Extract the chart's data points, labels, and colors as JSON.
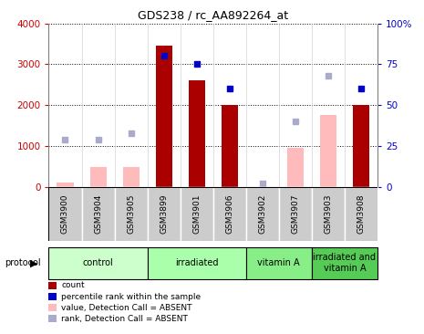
{
  "title": "GDS238 / rc_AA892264_at",
  "samples": [
    "GSM3900",
    "GSM3904",
    "GSM3905",
    "GSM3899",
    "GSM3901",
    "GSM3906",
    "GSM3902",
    "GSM3907",
    "GSM3903",
    "GSM3908"
  ],
  "count_values": [
    null,
    null,
    null,
    3450,
    2600,
    2000,
    null,
    null,
    null,
    2000
  ],
  "count_absent_values": [
    100,
    500,
    500,
    null,
    null,
    null,
    null,
    950,
    1750,
    null
  ],
  "rank_present": [
    null,
    null,
    null,
    80,
    75,
    60,
    null,
    null,
    null,
    60
  ],
  "rank_absent": [
    29,
    29,
    33,
    null,
    null,
    null,
    2,
    40,
    68,
    null
  ],
  "protocols": [
    {
      "label": "control",
      "start": 0,
      "end": 3,
      "color": "#ccffcc"
    },
    {
      "label": "irradiated",
      "start": 3,
      "end": 6,
      "color": "#aaffaa"
    },
    {
      "label": "vitamin A",
      "start": 6,
      "end": 8,
      "color": "#88ee88"
    },
    {
      "label": "irradiated and\nvitamin A",
      "start": 8,
      "end": 10,
      "color": "#55cc55"
    }
  ],
  "left_ylim": [
    0,
    4000
  ],
  "right_ylim": [
    0,
    100
  ],
  "left_yticks": [
    0,
    1000,
    2000,
    3000,
    4000
  ],
  "left_yticklabels": [
    "0",
    "1000",
    "2000",
    "3000",
    "4000"
  ],
  "right_yticks": [
    0,
    25,
    50,
    75,
    100
  ],
  "right_yticklabels": [
    "0",
    "25",
    "50",
    "75",
    "100%"
  ],
  "color_count": "#aa0000",
  "color_count_absent": "#ffbbbb",
  "color_rank_present": "#0000cc",
  "color_rank_absent": "#aaaacc",
  "left_label_color": "#cc0000",
  "right_label_color": "#0000cc",
  "sample_box_color": "#cccccc",
  "bar_width": 0.5,
  "marker_size": 5
}
